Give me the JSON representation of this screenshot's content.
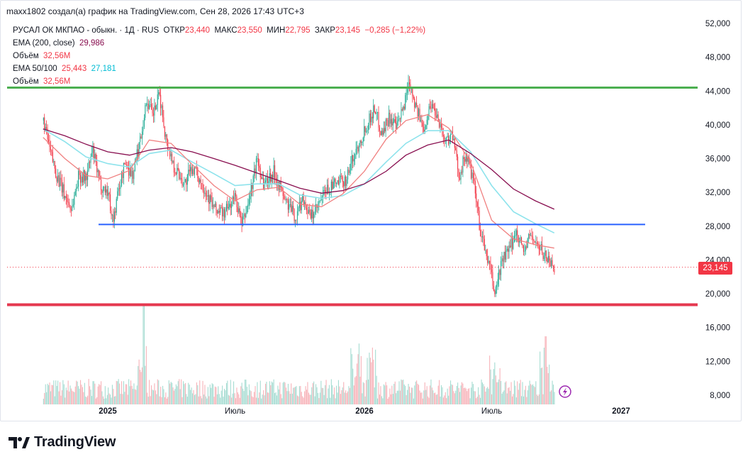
{
  "caption": "maxx1802 создал(а) график на TradingView.com, Сен 28, 2026 17:43 UTC+3",
  "legend": {
    "symbol": "РУСАЛ ОК МКПАО - обыкн. · 1Д · RUS",
    "open_label": "ОТКР",
    "open_value": "23,440",
    "high_label": "МАКС",
    "high_value": "23,550",
    "low_label": "МИН",
    "low_value": "22,795",
    "close_label": "ЗАКР",
    "close_value": "23,145",
    "change": "−0,285 (−1,22%)",
    "ema200_label": "EMA (200, close)",
    "ema200_value": "29,986",
    "volume_label_1": "Объём",
    "volume_value_1": "32,56M",
    "ema50_100_label": "EMA 50/100",
    "ema50_value": "25,443",
    "ema100_value": "27,181",
    "volume_label_2": "Объём",
    "volume_value_2": "32,56M"
  },
  "price_badge": "23,145",
  "footer": {
    "brand": "TradingView"
  },
  "colors": {
    "up": "#22ab94",
    "down": "#f23645",
    "ema50": "#f08080",
    "ema100": "#8de3ec",
    "ema200": "#880e4f",
    "support_blue": "#2962ff",
    "resistance_green": "#4caf50",
    "floor_red": "#e53950"
  },
  "chart_data": {
    "type": "candlestick",
    "title": "РУСАЛ ОК МКПАО - обыкн. · 1Д · RUS",
    "y_axis": {
      "ticks": [
        "52,000",
        "48,000",
        "44,000",
        "40,000",
        "36,000",
        "32,000",
        "28,000",
        "24,000",
        "20,000",
        "16,000",
        "12,000",
        "8,000"
      ],
      "range": [
        6.7,
        52
      ]
    },
    "x_axis": {
      "ticks": [
        "2025",
        "Июль",
        "2026",
        "Июль",
        "2027"
      ]
    },
    "close_price": 23.145,
    "horizontal_lines": [
      {
        "name": "resistance",
        "price": 44.4,
        "color": "#4caf50"
      },
      {
        "name": "support",
        "price": 28.2,
        "color": "#2962ff"
      },
      {
        "name": "floor",
        "price": 18.7,
        "color": "#e53950"
      }
    ],
    "price_path": [
      [
        "2024-10-01",
        40.5
      ],
      [
        "2024-10-10",
        37
      ],
      [
        "2024-10-20",
        34
      ],
      [
        "2024-11-01",
        31.5
      ],
      [
        "2024-11-10",
        30
      ],
      [
        "2024-11-20",
        34
      ],
      [
        "2024-12-01",
        33.8
      ],
      [
        "2024-12-10",
        37
      ],
      [
        "2024-12-20",
        33
      ],
      [
        "2025-01-01",
        32
      ],
      [
        "2025-01-08",
        28.5
      ],
      [
        "2025-01-15",
        32
      ],
      [
        "2025-01-25",
        35.5
      ],
      [
        "2025-02-05",
        34
      ],
      [
        "2025-02-15",
        38
      ],
      [
        "2025-02-25",
        43
      ],
      [
        "2025-03-05",
        41
      ],
      [
        "2025-03-15",
        43.5
      ],
      [
        "2025-03-25",
        38
      ],
      [
        "2025-04-05",
        35
      ],
      [
        "2025-04-20",
        33
      ],
      [
        "2025-05-01",
        35
      ],
      [
        "2025-05-15",
        33
      ],
      [
        "2025-06-01",
        30
      ],
      [
        "2025-06-15",
        29.5
      ],
      [
        "2025-07-01",
        31.5
      ],
      [
        "2025-07-10",
        28
      ],
      [
        "2025-07-20",
        31
      ],
      [
        "2025-08-01",
        36
      ],
      [
        "2025-08-10",
        33
      ],
      [
        "2025-08-25",
        34.5
      ],
      [
        "2025-09-10",
        31
      ],
      [
        "2025-09-25",
        29
      ],
      [
        "2025-10-05",
        31.5
      ],
      [
        "2025-10-15",
        29
      ],
      [
        "2025-10-25",
        30
      ],
      [
        "2025-11-05",
        32
      ],
      [
        "2025-11-20",
        33
      ],
      [
        "2025-12-05",
        33.5
      ],
      [
        "2025-12-15",
        36
      ],
      [
        "2026-01-01",
        39.5
      ],
      [
        "2026-01-15",
        42
      ],
      [
        "2026-01-25",
        39
      ],
      [
        "2026-02-05",
        41
      ],
      [
        "2026-02-15",
        39.5
      ],
      [
        "2026-02-25",
        42
      ],
      [
        "2026-03-05",
        45.5
      ],
      [
        "2026-03-15",
        42
      ],
      [
        "2026-03-25",
        39.5
      ],
      [
        "2026-04-05",
        42.5
      ],
      [
        "2026-04-15",
        41
      ],
      [
        "2026-04-25",
        38
      ],
      [
        "2026-05-05",
        39
      ],
      [
        "2026-05-15",
        34
      ],
      [
        "2026-05-25",
        36.5
      ],
      [
        "2026-06-05",
        33
      ],
      [
        "2026-06-15",
        27
      ],
      [
        "2026-06-25",
        24
      ],
      [
        "2026-07-05",
        20
      ],
      [
        "2026-07-15",
        24
      ],
      [
        "2026-07-25",
        25
      ],
      [
        "2026-08-05",
        27.5
      ],
      [
        "2026-08-15",
        25
      ],
      [
        "2026-08-25",
        27
      ],
      [
        "2026-09-05",
        25.5
      ],
      [
        "2026-09-15",
        24.5
      ],
      [
        "2026-09-28",
        23.1
      ]
    ],
    "ema50": [
      [
        "2024-10-01",
        38.5
      ],
      [
        "2024-11-01",
        36
      ],
      [
        "2024-12-01",
        34
      ],
      [
        "2025-01-01",
        33.6
      ],
      [
        "2025-02-01",
        34.6
      ],
      [
        "2025-03-01",
        38.2
      ],
      [
        "2025-04-01",
        37.8
      ],
      [
        "2025-05-01",
        35.3
      ],
      [
        "2025-06-01",
        32.8
      ],
      [
        "2025-07-01",
        31
      ],
      [
        "2025-08-01",
        32.3
      ],
      [
        "2025-09-01",
        32.6
      ],
      [
        "2025-10-01",
        30.6
      ],
      [
        "2025-11-01",
        30.3
      ],
      [
        "2025-12-01",
        31.8
      ],
      [
        "2026-01-01",
        34.5
      ],
      [
        "2026-02-01",
        38.3
      ],
      [
        "2026-03-01",
        40.5
      ],
      [
        "2026-04-01",
        41.2
      ],
      [
        "2026-05-01",
        39.6
      ],
      [
        "2026-06-01",
        35.6
      ],
      [
        "2026-07-01",
        28.7
      ],
      [
        "2026-08-01",
        26.5
      ],
      [
        "2026-09-01",
        25.8
      ],
      [
        "2026-09-28",
        25.4
      ]
    ],
    "ema100": [
      [
        "2024-10-01",
        39.5
      ],
      [
        "2024-11-01",
        38
      ],
      [
        "2024-12-01",
        36.2
      ],
      [
        "2025-01-01",
        35.4
      ],
      [
        "2025-02-01",
        35
      ],
      [
        "2025-03-01",
        36.6
      ],
      [
        "2025-04-01",
        37
      ],
      [
        "2025-05-01",
        35.6
      ],
      [
        "2025-06-01",
        34.2
      ],
      [
        "2025-07-01",
        32.8
      ],
      [
        "2025-08-01",
        33
      ],
      [
        "2025-09-01",
        33
      ],
      [
        "2025-10-01",
        31.7
      ],
      [
        "2025-11-01",
        31.3
      ],
      [
        "2025-12-01",
        31.6
      ],
      [
        "2026-01-01",
        33
      ],
      [
        "2026-02-01",
        35.6
      ],
      [
        "2026-03-01",
        37.8
      ],
      [
        "2026-04-01",
        39.3
      ],
      [
        "2026-05-01",
        39.3
      ],
      [
        "2026-06-01",
        36.8
      ],
      [
        "2026-07-01",
        32.8
      ],
      [
        "2026-08-01",
        29.7
      ],
      [
        "2026-09-01",
        28.3
      ],
      [
        "2026-09-28",
        27.2
      ]
    ],
    "ema200": [
      [
        "2024-10-01",
        39.5
      ],
      [
        "2024-11-01",
        38.7
      ],
      [
        "2024-12-01",
        37.7
      ],
      [
        "2025-01-01",
        36.8
      ],
      [
        "2025-02-01",
        36.4
      ],
      [
        "2025-03-01",
        37
      ],
      [
        "2025-04-01",
        37.3
      ],
      [
        "2025-05-01",
        36.8
      ],
      [
        "2025-06-01",
        36
      ],
      [
        "2025-07-01",
        35.2
      ],
      [
        "2025-08-01",
        34.3
      ],
      [
        "2025-09-01",
        33.4
      ],
      [
        "2025-10-01",
        32.5
      ],
      [
        "2025-11-01",
        31.9
      ],
      [
        "2025-12-01",
        32.2
      ],
      [
        "2026-01-01",
        33
      ],
      [
        "2026-02-01",
        34.5
      ],
      [
        "2026-03-01",
        36.4
      ],
      [
        "2026-04-01",
        37.6
      ],
      [
        "2026-05-01",
        38.2
      ],
      [
        "2026-06-01",
        36.6
      ],
      [
        "2026-07-01",
        34.7
      ],
      [
        "2026-08-01",
        32.4
      ],
      [
        "2026-09-01",
        31
      ],
      [
        "2026-09-28",
        30
      ]
    ],
    "volume_spikes": [
      [
        "2025-02-20",
        "high"
      ],
      [
        "2025-12-20",
        "high"
      ],
      [
        "2026-01-10",
        "high"
      ],
      [
        "2026-07-05",
        "high"
      ],
      [
        "2026-09-15",
        "high"
      ]
    ]
  }
}
